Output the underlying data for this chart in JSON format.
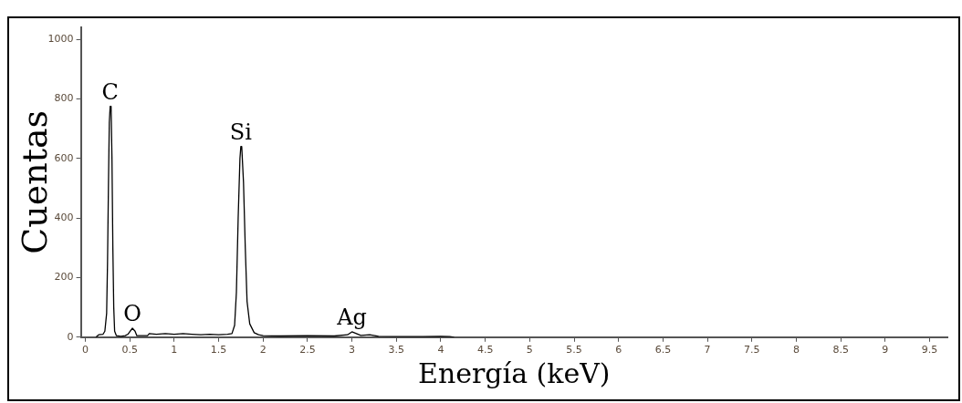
{
  "chart_data": {
    "type": "line",
    "xlabel": "Energía (keV)",
    "ylabel": "Cuentas",
    "x": [
      0.12,
      0.15,
      0.2,
      0.22,
      0.24,
      0.25,
      0.26,
      0.27,
      0.28,
      0.29,
      0.3,
      0.31,
      0.32,
      0.33,
      0.35,
      0.4,
      0.45,
      0.48,
      0.5,
      0.53,
      0.56,
      0.58,
      0.6,
      0.7,
      0.72,
      0.8,
      0.9,
      1.0,
      1.1,
      1.2,
      1.3,
      1.4,
      1.5,
      1.6,
      1.65,
      1.68,
      1.7,
      1.72,
      1.74,
      1.75,
      1.76,
      1.78,
      1.8,
      1.82,
      1.85,
      1.9,
      1.95,
      2.0,
      2.2,
      2.5,
      2.8,
      2.95,
      3.0,
      3.05,
      3.1,
      3.2,
      3.3,
      3.5,
      3.8,
      4.0,
      4.1,
      4.15
    ],
    "series": [
      {
        "color": "#000000",
        "values": [
          0,
          8,
          10,
          20,
          80,
          250,
          500,
          720,
          775,
          775,
          600,
          300,
          100,
          20,
          5,
          3,
          5,
          10,
          18,
          30,
          20,
          5,
          5,
          5,
          12,
          10,
          12,
          10,
          12,
          10,
          8,
          10,
          8,
          10,
          12,
          40,
          150,
          400,
          600,
          640,
          640,
          520,
          300,
          120,
          45,
          15,
          8,
          5,
          4,
          5,
          4,
          8,
          18,
          12,
          6,
          8,
          3,
          2,
          2,
          3,
          2,
          0
        ]
      }
    ],
    "xlim": [
      -0.05,
      9.7
    ],
    "ylim": [
      0,
      1040
    ],
    "xticks": [
      0,
      0.5,
      1,
      1.5,
      2,
      2.5,
      3,
      3.5,
      4,
      4.5,
      5,
      5.5,
      6,
      6.5,
      7,
      7.5,
      8,
      8.5,
      9,
      9.5
    ],
    "yticks": [
      0,
      200,
      400,
      600,
      800,
      1000
    ],
    "annotations": [
      {
        "text": "C",
        "x": 0.28,
        "y": 775
      },
      {
        "text": "O",
        "x": 0.53,
        "y": 30
      },
      {
        "text": "Si",
        "x": 1.75,
        "y": 640
      },
      {
        "text": "Ag",
        "x": 3.0,
        "y": 18
      }
    ],
    "grid": false,
    "legend": false,
    "marker": "none",
    "line_style": "solid"
  }
}
